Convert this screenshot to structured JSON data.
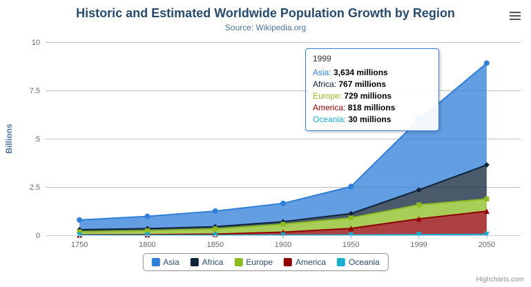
{
  "chart": {
    "credits": "Highcharts.com"
  },
  "chart_data": {
    "type": "area",
    "stacking": "normal",
    "title": "Historic and Estimated Worldwide Population Growth by Region",
    "subtitle": "Source: Wikipedia.org",
    "xlabel": "",
    "ylabel": "Billions",
    "ylim": [
      0,
      10
    ],
    "yticks": [
      0,
      2.5,
      5,
      7.5,
      10
    ],
    "grid": true,
    "legend_position": "bottom",
    "categories": [
      "1750",
      "1800",
      "1850",
      "1900",
      "1950",
      "1999",
      "2050"
    ],
    "values_in": "millions",
    "series": [
      {
        "name": "Asia",
        "color": "#2f7ed8",
        "marker": "circle",
        "values": [
          502,
          635,
          809,
          947,
          1402,
          3634,
          5268
        ]
      },
      {
        "name": "Africa",
        "color": "#0d233a",
        "marker": "diamond",
        "values": [
          106,
          107,
          111,
          133,
          221,
          767,
          1766
        ]
      },
      {
        "name": "Europe",
        "color": "#8bbc21",
        "marker": "square",
        "values": [
          163,
          203,
          276,
          408,
          547,
          729,
          628
        ]
      },
      {
        "name": "America",
        "color": "#910000",
        "marker": "triangle",
        "values": [
          18,
          31,
          54,
          156,
          339,
          818,
          1201
        ]
      },
      {
        "name": "Oceania",
        "color": "#1aadce",
        "marker": "triangle-down",
        "values": [
          2,
          2,
          2,
          6,
          13,
          30,
          46
        ]
      }
    ],
    "hover_point": {
      "category": "1999",
      "series": "Asia"
    }
  },
  "tooltip": {
    "header": "1999",
    "rows": [
      {
        "name": "Asia",
        "value": "3,634 millions"
      },
      {
        "name": "Africa",
        "value": "767 millions"
      },
      {
        "name": "Europe",
        "value": "729 millions"
      },
      {
        "name": "America",
        "value": "818 millions"
      },
      {
        "name": "Oceania",
        "value": "30 millions"
      }
    ]
  }
}
